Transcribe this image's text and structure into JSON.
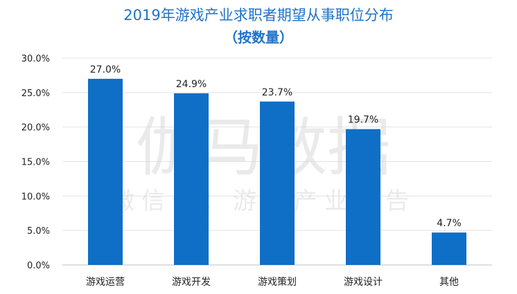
{
  "chart_data": {
    "type": "bar",
    "title": "2019年游戏产业求职者期望从事职位分布",
    "subtitle": "（按数量）",
    "categories": [
      "游戏运营",
      "游戏开发",
      "游戏策划",
      "游戏设计",
      "其他"
    ],
    "values": [
      27.0,
      24.9,
      23.7,
      19.7,
      4.7
    ],
    "data_labels": [
      "27.0%",
      "24.9%",
      "23.7%",
      "19.7%",
      "4.7%"
    ],
    "y_ticks": [
      "0.0%",
      "5.0%",
      "10.0%",
      "15.0%",
      "20.0%",
      "25.0%",
      "30.0%"
    ],
    "ylim": [
      0,
      30
    ],
    "grid": true,
    "bar_color": "#0f6fc6"
  },
  "watermark": {
    "main": "伽马数据",
    "sub": "微信号：游戏产业报告"
  }
}
